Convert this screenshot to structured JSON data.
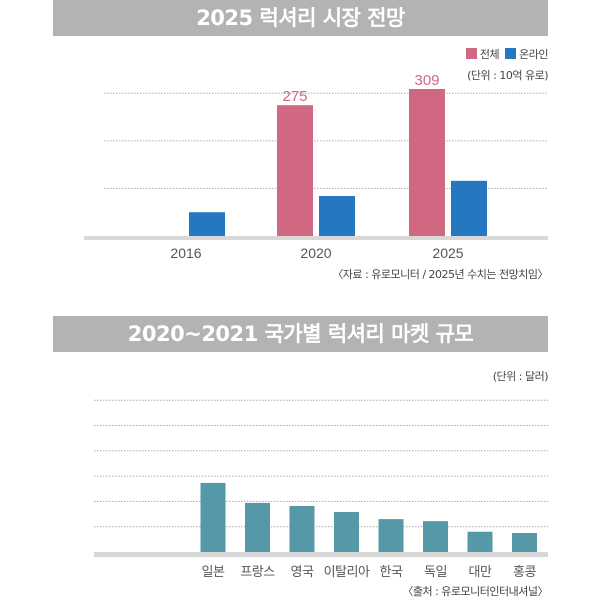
{
  "chart_data": [
    {
      "type": "bar",
      "title": "2025 럭셔리 시장 전망",
      "categories": [
        "2016",
        "2020",
        "2025"
      ],
      "series": [
        {
          "name": "전체",
          "color": "#cf6880",
          "values": [
            null,
            275,
            309
          ]
        },
        {
          "name": "온라인",
          "color": "#2577c0",
          "values": [
            50,
            84,
            116
          ]
        }
      ],
      "data_labels": [
        "275",
        "309"
      ],
      "unit": "(단위 : 10억 유로)",
      "source": "〈자료 : 유로모니터 / 2025년 수치는 전망치임〉",
      "ylim": [
        0,
        320
      ],
      "gridlines": [
        100,
        200,
        300
      ],
      "grid": true,
      "legend": "top-right"
    },
    {
      "type": "bar",
      "title": "2020~2021 국가별 럭셔리 마켓 규모",
      "categories": [
        "일본",
        "프랑스",
        "영국",
        "이탈리아",
        "한국",
        "독일",
        "대만",
        "홍콩"
      ],
      "values": [
        2.73,
        1.94,
        1.82,
        1.58,
        1.3,
        1.22,
        0.8,
        0.75
      ],
      "color": "#5599a8",
      "unit": "(단위 : 달러)",
      "source": "〈출처 : 유로모니터인터내셔널〉",
      "ylim": [
        0,
        6
      ],
      "gridlines": [
        1,
        2,
        3,
        4,
        5,
        6
      ],
      "grid": true
    }
  ]
}
